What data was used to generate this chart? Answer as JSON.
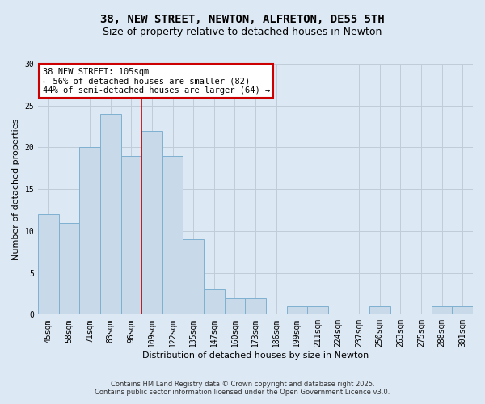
{
  "title": "38, NEW STREET, NEWTON, ALFRETON, DE55 5TH",
  "subtitle": "Size of property relative to detached houses in Newton",
  "xlabel": "Distribution of detached houses by size in Newton",
  "ylabel": "Number of detached properties",
  "categories": [
    "45sqm",
    "58sqm",
    "71sqm",
    "83sqm",
    "96sqm",
    "109sqm",
    "122sqm",
    "135sqm",
    "147sqm",
    "160sqm",
    "173sqm",
    "186sqm",
    "199sqm",
    "211sqm",
    "224sqm",
    "237sqm",
    "250sqm",
    "263sqm",
    "275sqm",
    "288sqm",
    "301sqm"
  ],
  "values": [
    12,
    11,
    20,
    24,
    19,
    22,
    19,
    9,
    3,
    2,
    2,
    0,
    1,
    1,
    0,
    0,
    1,
    0,
    0,
    1,
    1
  ],
  "bar_color": "#c8daea",
  "bar_edge_color": "#7fb0d0",
  "vline_x_index": 4.5,
  "vline_color": "#cc0000",
  "annotation_line1": "38 NEW STREET: 105sqm",
  "annotation_line2": "← 56% of detached houses are smaller (82)",
  "annotation_line3": "44% of semi-detached houses are larger (64) →",
  "annotation_box_edgecolor": "#cc0000",
  "annotation_bg": "#ffffff",
  "ylim_min": 0,
  "ylim_max": 30,
  "yticks": [
    0,
    5,
    10,
    15,
    20,
    25,
    30
  ],
  "grid_color": "#c0ccd8",
  "bg_color": "#dce8f4",
  "footer_line1": "Contains HM Land Registry data © Crown copyright and database right 2025.",
  "footer_line2": "Contains public sector information licensed under the Open Government Licence v3.0.",
  "title_fontsize": 10,
  "subtitle_fontsize": 9,
  "axis_label_fontsize": 8,
  "tick_fontsize": 7,
  "annotation_fontsize": 7.5,
  "footer_fontsize": 6
}
